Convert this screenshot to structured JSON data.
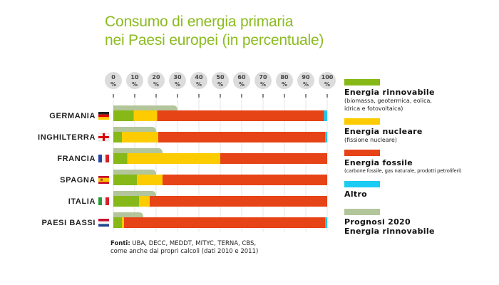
{
  "title": {
    "line1": "Consumo di energia primaria",
    "line2": "nei Paesi europei (in percentuale)"
  },
  "chart_data": {
    "type": "bar",
    "orientation": "horizontal",
    "stacked": true,
    "title": "Consumo di energia primaria nei Paesi europei (in percentuale)",
    "xlabel": "",
    "ylabel": "",
    "xlim": [
      0,
      100
    ],
    "x_ticks": [
      "0 %",
      "10 %",
      "20 %",
      "30 %",
      "40 %",
      "50 %",
      "60 %",
      "70 %",
      "80 %",
      "90 %",
      "100 %"
    ],
    "x_tick_values": [
      0,
      10,
      20,
      30,
      40,
      50,
      60,
      70,
      80,
      90,
      100
    ],
    "grid": true,
    "categories": [
      "GERMANIA",
      "INGHILTERRA",
      "FRANCIA",
      "SPAGNA",
      "ITALIA",
      "PAESI BASSI"
    ],
    "flags": [
      "flag-germany",
      "flag-england",
      "flag-france",
      "flag-spain",
      "flag-italy",
      "flag-netherlands"
    ],
    "series": [
      {
        "name": "Energia rinnovabile",
        "color": "#86b817",
        "values": [
          9.5,
          4,
          6.5,
          11,
          12,
          4
        ]
      },
      {
        "name": "Energia nucleare",
        "color": "#fccc00",
        "values": [
          11,
          17,
          43.5,
          12,
          5,
          1
        ]
      },
      {
        "name": "Energia fossile",
        "color": "#e64316",
        "values": [
          78,
          78,
          50,
          77,
          83,
          94
        ]
      },
      {
        "name": "Altro",
        "color": "#1ccbf3",
        "values": [
          1.5,
          1,
          0,
          0,
          0,
          1
        ]
      }
    ],
    "overlay_series": {
      "name": "Prognosi 2020 Energia rinnovabile",
      "color": "#b3c59a",
      "values": [
        30,
        20,
        23,
        20,
        20,
        14
      ]
    },
    "legend_placement": "right"
  },
  "legend": [
    {
      "title": "Energia rinnovabile",
      "desc": [
        "(biomassa, geotermica, eolica,",
        "idrica e fotovoltaica)"
      ],
      "color": "#86b817"
    },
    {
      "title": "Energia nucleare",
      "desc": [
        "(fissione nucleare)"
      ],
      "color": "#fccc00"
    },
    {
      "title": "Energia fossile",
      "desc": [
        "(carbone fossile, gas naturale, prodotti petroliferi)"
      ],
      "color": "#e64316"
    },
    {
      "title": "Altro",
      "desc": [],
      "color": "#1ccbf3"
    },
    {
      "title": "Prognosi 2020",
      "title2": "Energia rinnovabile",
      "desc": [],
      "color": "#b3c59a"
    }
  ],
  "sources": {
    "label": "Fonti:",
    "line1": " UBA, DECC, MEDDT, MITYC, TERNA, CBS,",
    "line2": "come anche dai propri calcoli (dati 2010 e 2011)"
  }
}
